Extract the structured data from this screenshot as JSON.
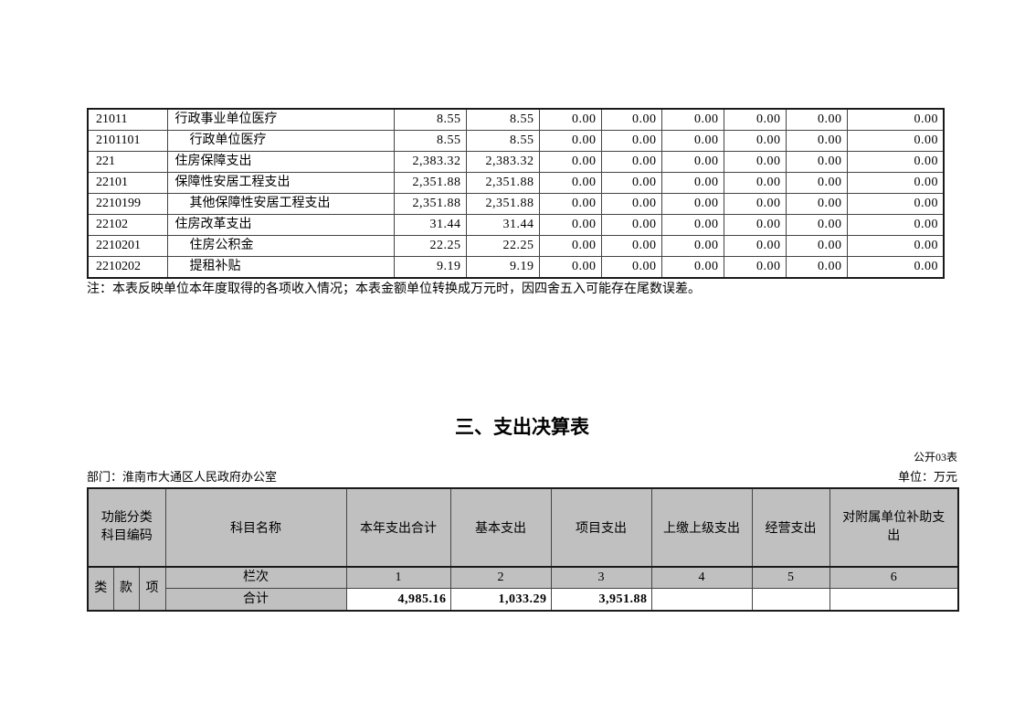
{
  "income_table": {
    "note": "注：本表反映单位本年度取得的各项收入情况；本表金额单位转换成万元时，因四舍五入可能存在尾数误差。",
    "rows": [
      {
        "code": "21011",
        "name": "行政事业单位医疗",
        "indent": false,
        "values": [
          "8.55",
          "8.55",
          "0.00",
          "0.00",
          "0.00",
          "0.00",
          "0.00",
          "0.00"
        ]
      },
      {
        "code": "2101101",
        "name": "行政单位医疗",
        "indent": true,
        "values": [
          "8.55",
          "8.55",
          "0.00",
          "0.00",
          "0.00",
          "0.00",
          "0.00",
          "0.00"
        ]
      },
      {
        "code": "221",
        "name": "住房保障支出",
        "indent": false,
        "values": [
          "2,383.32",
          "2,383.32",
          "0.00",
          "0.00",
          "0.00",
          "0.00",
          "0.00",
          "0.00"
        ]
      },
      {
        "code": "22101",
        "name": "保障性安居工程支出",
        "indent": false,
        "values": [
          "2,351.88",
          "2,351.88",
          "0.00",
          "0.00",
          "0.00",
          "0.00",
          "0.00",
          "0.00"
        ]
      },
      {
        "code": "2210199",
        "name": "其他保障性安居工程支出",
        "indent": true,
        "values": [
          "2,351.88",
          "2,351.88",
          "0.00",
          "0.00",
          "0.00",
          "0.00",
          "0.00",
          "0.00"
        ]
      },
      {
        "code": "22102",
        "name": "住房改革支出",
        "indent": false,
        "values": [
          "31.44",
          "31.44",
          "0.00",
          "0.00",
          "0.00",
          "0.00",
          "0.00",
          "0.00"
        ]
      },
      {
        "code": "2210201",
        "name": "住房公积金",
        "indent": true,
        "values": [
          "22.25",
          "22.25",
          "0.00",
          "0.00",
          "0.00",
          "0.00",
          "0.00",
          "0.00"
        ]
      },
      {
        "code": "2210202",
        "name": "提租补贴",
        "indent": true,
        "values": [
          "9.19",
          "9.19",
          "0.00",
          "0.00",
          "0.00",
          "0.00",
          "0.00",
          "0.00"
        ]
      }
    ]
  },
  "expenditure": {
    "title": "三、支出决算表",
    "table_label": "公开03表",
    "department": "部门：淮南市大通区人民政府办公室",
    "unit": "单位：万元",
    "table": {
      "code_header": "功能分类\n科目编码",
      "code_sub": [
        "类",
        "款",
        "项"
      ],
      "columns": [
        "科目名称",
        "本年支出合计",
        "基本支出",
        "项目支出",
        "上缴上级支出",
        "经营支出",
        "对附属单位补助支出"
      ],
      "row_header": "栏次",
      "indices": [
        "1",
        "2",
        "3",
        "4",
        "5",
        "6"
      ],
      "total_label": "合计",
      "totals": [
        "4,985.16",
        "1,033.29",
        "3,951.88",
        "",
        "",
        ""
      ]
    }
  },
  "colors": {
    "header_gray": "#c0c0c0",
    "border": "#444444",
    "outer_border": "#1a1a1a"
  }
}
